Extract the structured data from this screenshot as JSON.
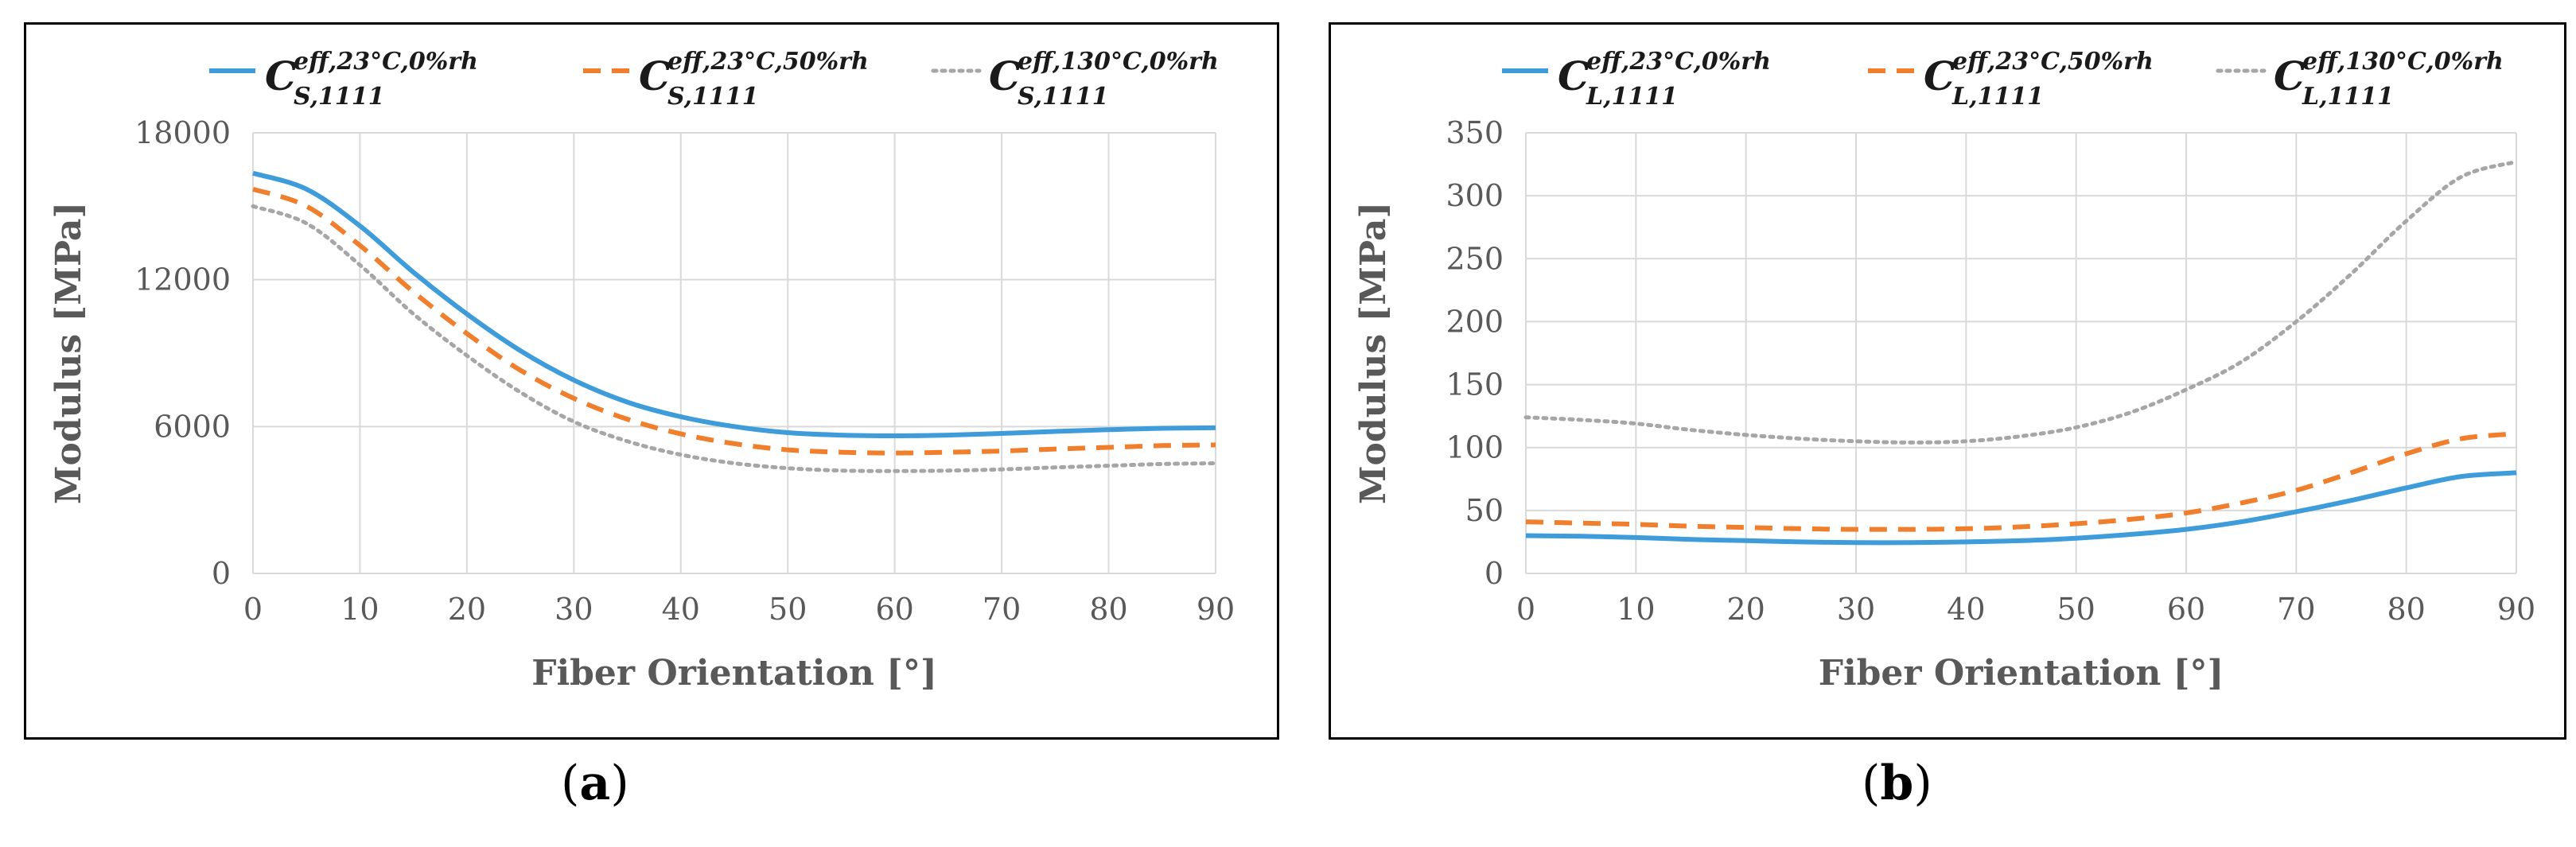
{
  "chart_data": [
    {
      "type": "line",
      "panel": "a",
      "title": "",
      "xlabel": "Fiber Orientation [°]",
      "ylabel": "Modulus [MPa]",
      "xlim": [
        0,
        90
      ],
      "ylim": [
        0,
        18000
      ],
      "xticks": [
        "0",
        "10",
        "20",
        "30",
        "40",
        "50",
        "60",
        "70",
        "80",
        "90"
      ],
      "yticks": [
        "0",
        "6000",
        "12000",
        "18000"
      ],
      "grid": true,
      "legend_position": "top",
      "x": [
        0,
        5,
        10,
        15,
        20,
        25,
        30,
        35,
        40,
        45,
        50,
        55,
        60,
        65,
        70,
        75,
        80,
        85,
        90
      ],
      "series": [
        {
          "name": "C^{eff,23°C,0%rh}_{S,1111}",
          "base": "C",
          "sub": "S,1111",
          "sup": "eff,23°C,0%rh",
          "color": "#3d9cd9",
          "style": "solid",
          "values": [
            16350,
            15700,
            14200,
            12300,
            10600,
            9100,
            7900,
            7000,
            6400,
            6000,
            5750,
            5650,
            5620,
            5650,
            5720,
            5800,
            5870,
            5930,
            5950
          ]
        },
        {
          "name": "C^{eff,23°C,50%rh}_{S,1111}",
          "base": "C",
          "sub": "S,1111",
          "sup": "eff,23°C,50%rh",
          "color": "#f07f2d",
          "style": "dashed",
          "values": [
            15700,
            15000,
            13400,
            11500,
            9800,
            8300,
            7150,
            6300,
            5700,
            5300,
            5050,
            4950,
            4920,
            4950,
            5000,
            5080,
            5150,
            5220,
            5250
          ]
        },
        {
          "name": "C^{eff,130°C,0%rh}_{S,1111}",
          "base": "C",
          "sub": "S,1111",
          "sup": "eff,130°C,0%rh",
          "color": "#a6a6a6",
          "style": "dotted",
          "values": [
            15000,
            14300,
            12600,
            10600,
            8900,
            7400,
            6200,
            5400,
            4850,
            4500,
            4300,
            4200,
            4180,
            4200,
            4250,
            4330,
            4400,
            4470,
            4500
          ]
        }
      ]
    },
    {
      "type": "line",
      "panel": "b",
      "title": "",
      "xlabel": "Fiber Orientation [°]",
      "ylabel": "Modulus [MPa]",
      "xlim": [
        0,
        90
      ],
      "ylim": [
        0,
        350
      ],
      "xticks": [
        "0",
        "10",
        "20",
        "30",
        "40",
        "50",
        "60",
        "70",
        "80",
        "90"
      ],
      "yticks": [
        "0",
        "50",
        "100",
        "150",
        "200",
        "250",
        "300",
        "350"
      ],
      "grid": true,
      "legend_position": "top",
      "x": [
        0,
        5,
        10,
        15,
        20,
        25,
        30,
        35,
        40,
        45,
        50,
        55,
        60,
        65,
        70,
        75,
        80,
        85,
        90
      ],
      "series": [
        {
          "name": "C^{eff,23°C,0%rh}_{L,1111}",
          "base": "C",
          "sub": "L,1111",
          "sup": "eff,23°C,0%rh",
          "color": "#3d9cd9",
          "style": "solid",
          "values": [
            30,
            29.5,
            28.5,
            27,
            26,
            25,
            24.5,
            24.5,
            25,
            26,
            28,
            31,
            35,
            41,
            49,
            58,
            68,
            77,
            80
          ]
        },
        {
          "name": "C^{eff,23°C,50%rh}_{L,1111}",
          "base": "C",
          "sub": "L,1111",
          "sup": "eff,23°C,50%rh",
          "color": "#f07f2d",
          "style": "dashed",
          "values": [
            41,
            40,
            39,
            37.5,
            36.5,
            35.5,
            35,
            35,
            35.5,
            37,
            39.5,
            43,
            48,
            56,
            66,
            80,
            95,
            107,
            111
          ]
        },
        {
          "name": "C^{eff,130°C,0%rh}_{L,1111}",
          "base": "C",
          "sub": "L,1111",
          "sup": "eff,130°C,0%rh",
          "color": "#a6a6a6",
          "style": "dotted",
          "values": [
            124,
            122,
            119,
            114,
            110,
            107,
            105,
            104,
            105,
            109,
            116,
            128,
            146,
            168,
            200,
            238,
            280,
            315,
            327
          ]
        }
      ]
    }
  ],
  "captions": {
    "a": "a",
    "b": "b"
  }
}
